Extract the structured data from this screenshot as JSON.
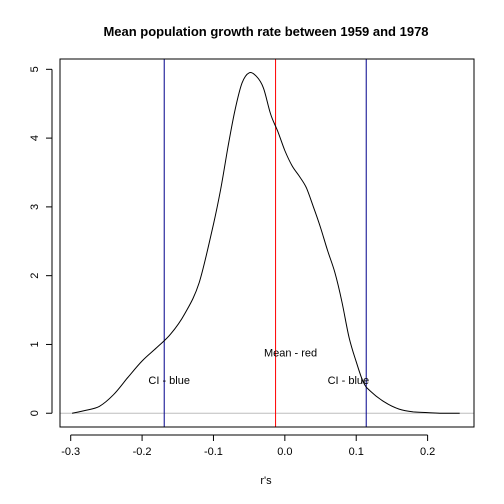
{
  "chart_data": {
    "type": "line",
    "title": "Mean population growth rate between 1959 and 1978",
    "xlabel": "r's",
    "ylabel": "",
    "xlim": [
      -0.315,
      0.265
    ],
    "ylim": [
      -0.2,
      5.15
    ],
    "xticks": [
      -0.3,
      -0.2,
      -0.1,
      0.0,
      0.1,
      0.2
    ],
    "xtick_labels": [
      "-0.3",
      "-0.2",
      "-0.1",
      "0.0",
      "0.1",
      "0.2"
    ],
    "yticks": [
      0,
      1,
      2,
      3,
      4,
      5
    ],
    "ytick_labels": [
      "0",
      "1",
      "2",
      "3",
      "4",
      "5"
    ],
    "grid": false,
    "density": {
      "x": [
        -0.298,
        -0.28,
        -0.26,
        -0.24,
        -0.22,
        -0.2,
        -0.18,
        -0.16,
        -0.14,
        -0.12,
        -0.1,
        -0.09,
        -0.08,
        -0.07,
        -0.06,
        -0.05,
        -0.04,
        -0.03,
        -0.02,
        -0.01,
        0.0,
        0.01,
        0.02,
        0.03,
        0.04,
        0.05,
        0.06,
        0.07,
        0.08,
        0.09,
        0.1,
        0.11,
        0.12,
        0.14,
        0.16,
        0.18,
        0.2,
        0.22,
        0.245
      ],
      "y": [
        0.0,
        0.04,
        0.1,
        0.27,
        0.52,
        0.76,
        0.95,
        1.15,
        1.45,
        1.9,
        2.75,
        3.25,
        3.85,
        4.4,
        4.8,
        4.95,
        4.9,
        4.73,
        4.35,
        4.1,
        3.82,
        3.6,
        3.45,
        3.28,
        3.0,
        2.7,
        2.36,
        2.05,
        1.62,
        1.1,
        0.75,
        0.45,
        0.32,
        0.16,
        0.06,
        0.02,
        0.01,
        0.0,
        0.0
      ],
      "color": "#000000"
    },
    "baseline": {
      "y": 0,
      "color": "#bebebe"
    },
    "vlines": [
      {
        "x": -0.169,
        "color": "#00008b"
      },
      {
        "x": -0.013,
        "color": "#ff0000"
      },
      {
        "x": 0.114,
        "color": "#00008b"
      }
    ],
    "annotations": [
      {
        "text": "Mean - red",
        "x": 0.008,
        "y": 0.88
      },
      {
        "text": "CI - blue",
        "x": -0.162,
        "y": 0.48
      },
      {
        "text": "CI - blue",
        "x": 0.089,
        "y": 0.48
      }
    ]
  }
}
